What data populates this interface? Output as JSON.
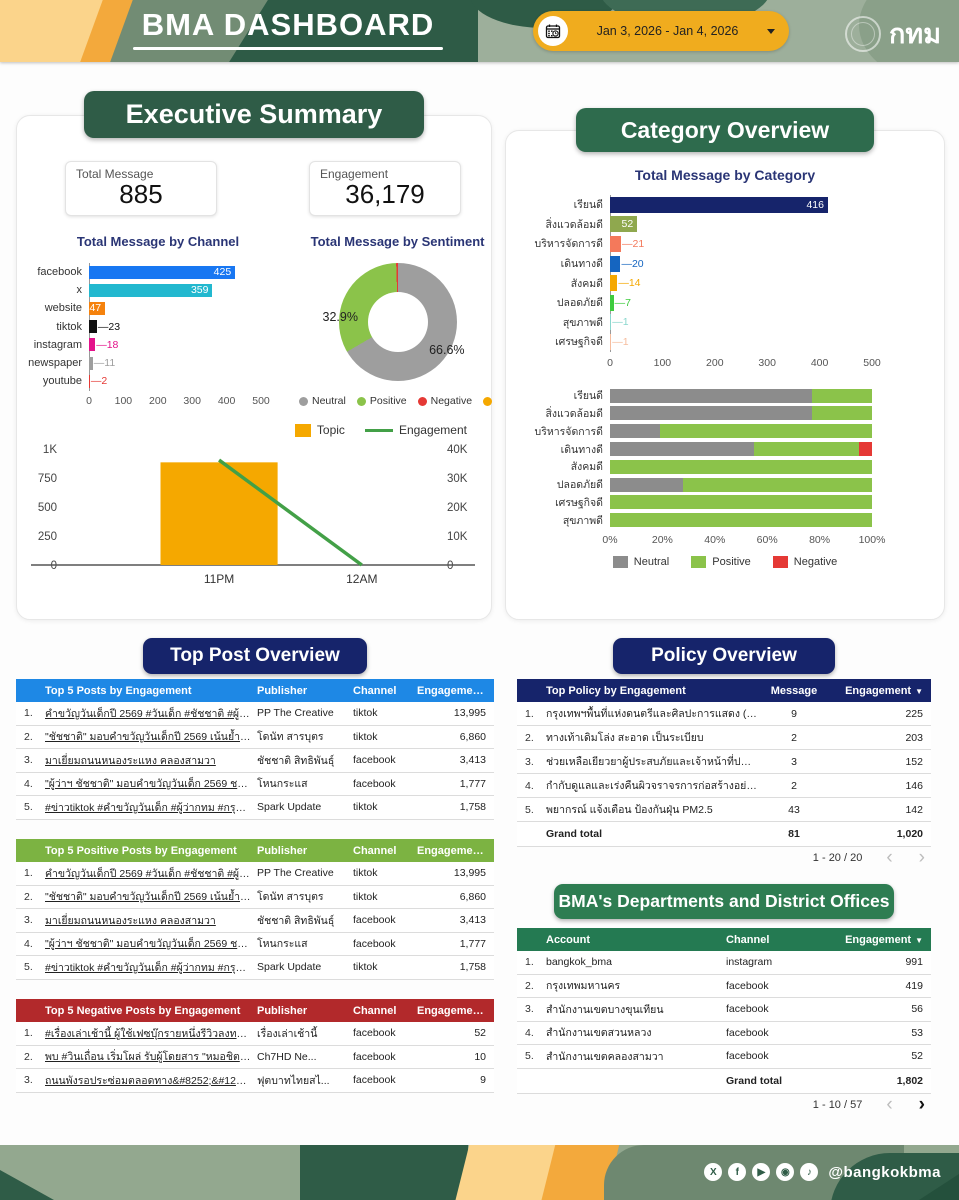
{
  "header": {
    "title": "BMA DASHBOARD",
    "date_range": "Jan 3, 2026 - Jan 4, 2026",
    "logo_text": "กทม"
  },
  "colors": {
    "header_green": "#2E5B46",
    "sage": "#9DAF9B",
    "accent_yellow": "#F0AC1E",
    "navy_badge": "#16246B",
    "exec_badge": "#2F5C47",
    "category_badge": "#2E6B4D",
    "bma_badge": "#2E7D52"
  },
  "executive_summary": {
    "title": "Executive Summary",
    "kpis": [
      {
        "label": "Total Message",
        "value": "885"
      },
      {
        "label": "Engagement",
        "value": "36,179"
      }
    ]
  },
  "category_overview": {
    "title": "Category Overview"
  },
  "chart_data": [
    {
      "id": "channel",
      "type": "bar",
      "orientation": "horizontal",
      "title": "Total Message by Channel",
      "categories": [
        "facebook",
        "x",
        "website",
        "tiktok",
        "instagram",
        "newspaper",
        "youtube"
      ],
      "values": [
        425,
        359,
        47,
        23,
        18,
        11,
        2
      ],
      "colors": [
        "#1877F2",
        "#22B8CF",
        "#F5820D",
        "#111111",
        "#E4128B",
        "#9E9E9E",
        "#E53935"
      ],
      "xlim": [
        0,
        500
      ],
      "ticks": [
        0,
        100,
        200,
        300,
        400,
        500
      ]
    },
    {
      "id": "sentiment",
      "type": "pie",
      "title": "Total Message by Sentiment",
      "slices": [
        {
          "label": "Neutral",
          "pct": 66.6,
          "color": "#9E9E9E"
        },
        {
          "label": "Positive",
          "pct": 32.9,
          "color": "#8BC34A"
        },
        {
          "label": "Negative",
          "pct": 0.5,
          "color": "#E53935"
        }
      ],
      "legend_extra": {
        "label": "",
        "color": "#F5A800"
      },
      "shown_labels": [
        "66.6%",
        "32.9%"
      ]
    },
    {
      "id": "topic_engagement",
      "type": "line",
      "title": "",
      "categories": [
        "11PM",
        "12AM"
      ],
      "series": [
        {
          "name": "Topic",
          "kind": "bar",
          "color": "#F5A800",
          "values": [
            885,
            0
          ]
        },
        {
          "name": "Engagement",
          "kind": "line",
          "color": "#43A047",
          "values": [
            36179,
            0
          ]
        }
      ],
      "left_axis": {
        "ticks": [
          "1K",
          "750",
          "500",
          "250",
          "0"
        ],
        "max": 1000
      },
      "right_axis": {
        "ticks": [
          "40K",
          "30K",
          "20K",
          "10K",
          "0"
        ],
        "max": 40000
      }
    },
    {
      "id": "category",
      "type": "bar",
      "orientation": "horizontal",
      "title": "Total Message by Category",
      "categories": [
        "เรียนดี",
        "สิ่งแวดล้อมดี",
        "บริหารจัดการดี",
        "เดินทางดี",
        "สังคมดี",
        "ปลอดภัยดี",
        "สุขภาพดี",
        "เศรษฐกิจดี"
      ],
      "values": [
        416,
        52,
        21,
        20,
        14,
        7,
        1,
        1
      ],
      "colors": [
        "#16246B",
        "#8FA84E",
        "#F4795B",
        "#1565C0",
        "#F5A800",
        "#3ECC3E",
        "#8AD7CE",
        "#F6BD9E"
      ],
      "xlim": [
        0,
        500
      ],
      "ticks": [
        0,
        100,
        200,
        300,
        400,
        500
      ]
    },
    {
      "id": "category_sentiment",
      "type": "bar",
      "subtype": "stacked_percent",
      "categories": [
        "เรียนดี",
        "สิ่งแวดล้อมดี",
        "บริหารจัดการดี",
        "เดินทางดี",
        "สังคมดี",
        "ปลอดภัยดี",
        "เศรษฐกิจดี",
        "สุขภาพดี"
      ],
      "series": [
        {
          "name": "Neutral",
          "color": "#8C8C8C",
          "values": [
            77,
            77,
            19,
            55,
            0,
            28,
            0,
            0
          ]
        },
        {
          "name": "Positive",
          "color": "#8BC34A",
          "values": [
            23,
            23,
            81,
            40,
            100,
            72,
            100,
            100
          ]
        },
        {
          "name": "Negative",
          "color": "#E53935",
          "values": [
            0,
            0,
            0,
            5,
            0,
            0,
            0,
            0
          ]
        }
      ],
      "ticks": [
        "0%",
        "20%",
        "40%",
        "60%",
        "80%",
        "100%"
      ]
    }
  ],
  "top_posts": {
    "section_title": "Top Post Overview",
    "tables": [
      {
        "id": "top5",
        "header_bg": "#1E88E5",
        "columns": [
          "Top 5 Posts by Engagement",
          "Publisher",
          "Channel",
          "Engageme..."
        ],
        "rows": [
          [
            "คำขวัญวันเด็กปี 2569 #วันเด็ก #ชัชชาติ #ผู้ว่ากท...",
            "PP The Creative",
            "tiktok",
            "13,995"
          ],
          [
            "\"ชัชชาติ\" มอบคำขวัญวันเด็กปี 2569 เน้นย้ำอย่าทิ้ง...",
            "โดนัท สารบุตร",
            "tiktok",
            "6,860"
          ],
          [
            "มาเยี่ยมถนนหนองระแหง คลองสามวา",
            "ชัชชาติ สิทธิพันธุ์",
            "facebook",
            "3,413"
          ],
          [
            "\"ผู้ว่าฯ ชัชชาติ\" มอบคำขวัญวันเด็ก 2569 ชาวเน็ต...",
            "โหนกระแส",
            "facebook",
            "1,777"
          ],
          [
            "#ข่าวtiktok #คำขวัญวันเด็ก #ผู้ว่ากทม #กรุงเทพ...",
            "Spark Update",
            "tiktok",
            "1,758"
          ]
        ]
      },
      {
        "id": "positive",
        "header_bg": "#7CB342",
        "columns": [
          "Top 5 Positive Posts by Engagement",
          "Publisher",
          "Channel",
          "Engagement"
        ],
        "rows": [
          [
            "คำขวัญวันเด็กปี 2569 #วันเด็ก #ชัชชาติ #ผู้ว่ากทม...",
            "PP The Creative",
            "tiktok",
            "13,995"
          ],
          [
            "\"ชัชชาติ\" มอบคำขวัญวันเด็กปี 2569 เน้นย้ำอย่าทิ้งค...",
            "โดนัท สารบุตร",
            "tiktok",
            "6,860"
          ],
          [
            "มาเยี่ยมถนนหนองระแหง คลองสามวา",
            "ชัชชาติ สิทธิพันธุ์",
            "facebook",
            "3,413"
          ],
          [
            "\"ผู้ว่าฯ ชัชชาติ\" มอบคำขวัญวันเด็ก 2569 ชาวเน็ตแ...",
            "โหนกระแส",
            "facebook",
            "1,777"
          ],
          [
            "#ข่าวtiktok #คำขวัญวันเด็ก #ผู้ว่ากทม #กรุงเทพม...",
            "Spark Update",
            "tiktok",
            "1,758"
          ]
        ]
      },
      {
        "id": "negative",
        "header_bg": "#B2292B",
        "columns": [
          "Top 5 Negative Posts by Engagement",
          "Publisher",
          "Channel",
          "Engagement"
        ],
        "rows": [
          [
            "#เรื่องเล่าเช้านี้ ผู้ใช้เฟซบุ๊กรายหนึ่งรีวิวลงทะเบียนเลือกตั้...",
            "เรื่องเล่าเช้านี้",
            "facebook",
            "52"
          ],
          [
            "พบ #วินเถื่อน เริ่มโผล่ รับผู้โดยสาร \"หมอชิต\" มีประชาช...",
            "Ch7HD Ne...",
            "facebook",
            "10"
          ],
          [
            "ถนนพังรอประซ่อมตลอดทาง&#8252;&#128548;",
            "ฟุตบาทไทยสไ...",
            "facebook",
            "9"
          ]
        ]
      }
    ]
  },
  "policy": {
    "section_title": "Policy Overview",
    "header_bg": "#16246B",
    "columns": [
      "Top Policy by Engagement",
      "Message",
      "Engagement"
    ],
    "rows": [
      [
        "กรุงเทพฯพื้นที่แห่งดนตรีและศิลปะการแสดง (สด...",
        "9",
        "225"
      ],
      [
        "ทางเท้าเดิมโล่ง สะอาด เป็นระเบียบ",
        "2",
        "203"
      ],
      [
        "ช่วยเหลือเยียวยาผู้ประสบภัยและเจ้าหน้าที่ปฏิบั...",
        "3",
        "152"
      ],
      [
        "กำกับดูแลและเร่งคืนผิวจราจรการก่อสร้างอย่างใ...",
        "2",
        "146"
      ],
      [
        "พยากรณ์ แจ้งเตือน ป้องกันฝุ่น PM2.5",
        "43",
        "142"
      ]
    ],
    "grand_total": [
      "Grand total",
      "81",
      "1,020"
    ],
    "pagination": {
      "label": "1 - 20 / 20",
      "prev_active": false,
      "next_active": false
    }
  },
  "departments": {
    "section_title": "BMA's Departments and District Offices",
    "header_bg": "#247A52",
    "columns": [
      "Account",
      "Channel",
      "Engagement"
    ],
    "rows": [
      [
        "bangkok_bma",
        "instagram",
        "991"
      ],
      [
        "กรุงเทพมหานคร",
        "facebook",
        "419"
      ],
      [
        "สำนักงานเขตบางขุนเทียน",
        "facebook",
        "56"
      ],
      [
        "สำนักงานเขตสวนหลวง",
        "facebook",
        "53"
      ],
      [
        "สำนักงานเขตคลองสามวา",
        "facebook",
        "52"
      ]
    ],
    "grand_total": [
      "",
      "Grand total",
      "1,802"
    ],
    "pagination": {
      "label": "1 - 10 / 57",
      "prev_active": false,
      "next_active": true
    }
  },
  "footer": {
    "handle": "@bangkokbma",
    "icons": [
      "x",
      "facebook",
      "youtube",
      "instagram",
      "tiktok"
    ]
  }
}
